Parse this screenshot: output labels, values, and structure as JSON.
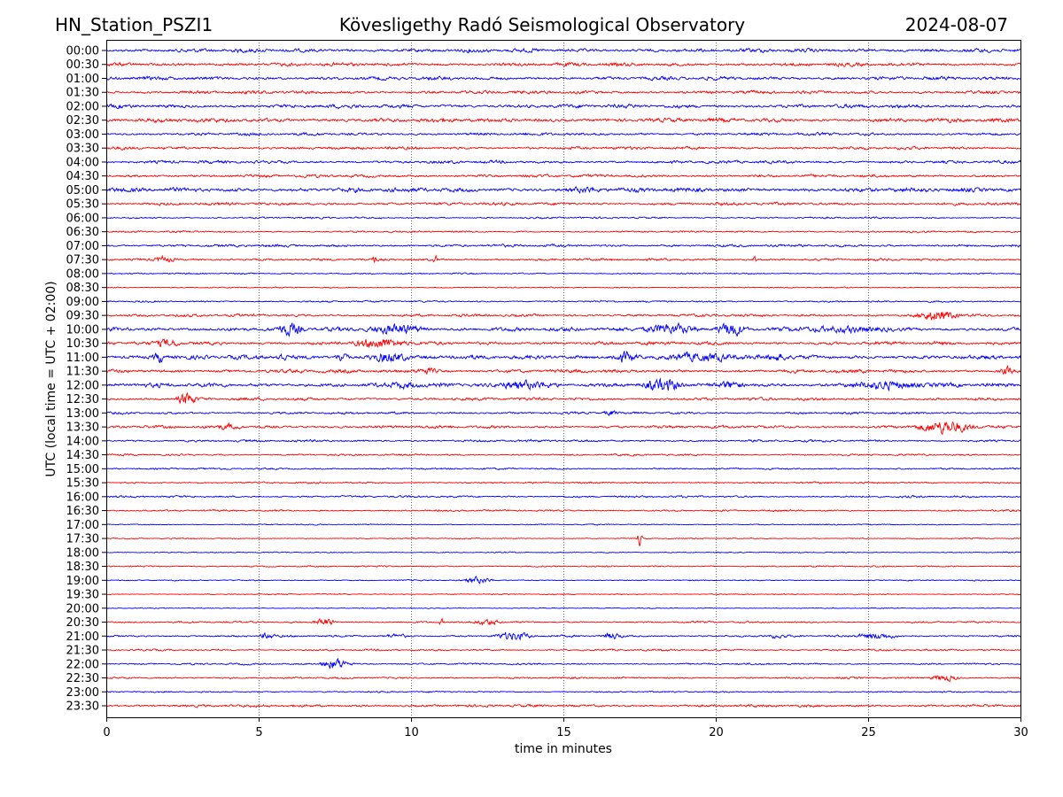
{
  "header": {
    "station": "HN_Station_PSZI1",
    "title": "Kövesligethy Radó Seismological Observatory",
    "date": "2024-08-07"
  },
  "chart_data": {
    "type": "line",
    "subtype": "helicorder",
    "xlabel": "time in minutes",
    "ylabel": "UTC (local time = UTC + 02:00)",
    "xlim": [
      0,
      30
    ],
    "xticks": [
      "0",
      "5",
      "10",
      "15",
      "20",
      "25",
      "30"
    ],
    "grid": "vertical dotted at every 5 minutes",
    "colors": [
      "#0000ff",
      "#ff0000"
    ],
    "rows": [
      "00:00",
      "00:30",
      "01:00",
      "01:30",
      "02:00",
      "02:30",
      "03:00",
      "03:30",
      "04:00",
      "04:30",
      "05:00",
      "05:30",
      "06:00",
      "06:30",
      "07:00",
      "07:30",
      "08:00",
      "08:30",
      "09:00",
      "09:30",
      "10:00",
      "10:30",
      "11:00",
      "11:30",
      "12:00",
      "12:30",
      "13:00",
      "13:30",
      "14:00",
      "14:30",
      "15:00",
      "15:30",
      "16:00",
      "16:30",
      "17:00",
      "17:30",
      "18:00",
      "18:30",
      "19:00",
      "19:30",
      "20:00",
      "20:30",
      "21:00",
      "21:30",
      "22:00",
      "22:30",
      "23:00",
      "23:30"
    ],
    "row_noise_level": [
      1.3,
      1.2,
      1.2,
      1.1,
      1.3,
      1.4,
      1.0,
      1.0,
      1.0,
      1.0,
      1.5,
      1.0,
      0.6,
      0.6,
      0.9,
      0.8,
      0.5,
      0.4,
      0.6,
      0.9,
      1.4,
      1.2,
      1.4,
      1.2,
      1.4,
      1.0,
      0.8,
      1.0,
      0.8,
      0.6,
      0.6,
      0.6,
      0.7,
      0.6,
      0.4,
      0.4,
      0.4,
      0.5,
      0.4,
      0.4,
      0.3,
      0.6,
      0.7,
      0.6,
      0.6,
      0.6,
      0.5,
      0.9
    ],
    "events": [
      {
        "row": "05:00",
        "start": 15.0,
        "end": 16.5,
        "amp": 3
      },
      {
        "row": "07:30",
        "start": 1.5,
        "end": 2.3,
        "amp": 3
      },
      {
        "row": "07:30",
        "start": 8.75,
        "end": 8.85,
        "amp": 5
      },
      {
        "row": "07:30",
        "start": 10.75,
        "end": 10.85,
        "amp": 4
      },
      {
        "row": "07:30",
        "start": 21.25,
        "end": 21.35,
        "amp": 4
      },
      {
        "row": "09:30",
        "start": 26.5,
        "end": 28.0,
        "amp": 5
      },
      {
        "row": "10:00",
        "start": 5.5,
        "end": 6.5,
        "amp": 6
      },
      {
        "row": "10:00",
        "start": 8.5,
        "end": 10.5,
        "amp": 5
      },
      {
        "row": "10:00",
        "start": 17.5,
        "end": 19.5,
        "amp": 5
      },
      {
        "row": "10:00",
        "start": 20.0,
        "end": 21.0,
        "amp": 7
      },
      {
        "row": "10:00",
        "start": 22.0,
        "end": 26.5,
        "amp": 3
      },
      {
        "row": "10:30",
        "start": 1.5,
        "end": 2.5,
        "amp": 4
      },
      {
        "row": "10:30",
        "start": 8.0,
        "end": 10.0,
        "amp": 5
      },
      {
        "row": "11:00",
        "start": 1.5,
        "end": 2.0,
        "amp": 5
      },
      {
        "row": "11:00",
        "start": 5.5,
        "end": 6.0,
        "amp": 4
      },
      {
        "row": "11:00",
        "start": 7.5,
        "end": 8.0,
        "amp": 5
      },
      {
        "row": "11:00",
        "start": 8.5,
        "end": 10.0,
        "amp": 5
      },
      {
        "row": "11:00",
        "start": 16.5,
        "end": 17.5,
        "amp": 5
      },
      {
        "row": "11:00",
        "start": 18.0,
        "end": 21.0,
        "amp": 4
      },
      {
        "row": "11:00",
        "start": 21.5,
        "end": 22.5,
        "amp": 4
      },
      {
        "row": "11:30",
        "start": 10.0,
        "end": 11.0,
        "amp": 3
      },
      {
        "row": "11:30",
        "start": 29.3,
        "end": 29.8,
        "amp": 4
      },
      {
        "row": "12:00",
        "start": 9.0,
        "end": 10.5,
        "amp": 3
      },
      {
        "row": "12:00",
        "start": 12.5,
        "end": 15.0,
        "amp": 4
      },
      {
        "row": "12:00",
        "start": 17.5,
        "end": 19.0,
        "amp": 6
      },
      {
        "row": "12:00",
        "start": 20.0,
        "end": 21.0,
        "amp": 4
      },
      {
        "row": "12:00",
        "start": 24.0,
        "end": 27.0,
        "amp": 4
      },
      {
        "row": "12:30",
        "start": 2.3,
        "end": 3.0,
        "amp": 6
      },
      {
        "row": "13:00",
        "start": 16.3,
        "end": 16.8,
        "amp": 3
      },
      {
        "row": "13:30",
        "start": 3.5,
        "end": 4.5,
        "amp": 3
      },
      {
        "row": "13:30",
        "start": 26.5,
        "end": 28.5,
        "amp": 6
      },
      {
        "row": "17:30",
        "start": 17.45,
        "end": 17.55,
        "amp": 8
      },
      {
        "row": "19:00",
        "start": 11.7,
        "end": 12.7,
        "amp": 3
      },
      {
        "row": "20:30",
        "start": 6.8,
        "end": 7.5,
        "amp": 4
      },
      {
        "row": "20:30",
        "start": 10.9,
        "end": 11.1,
        "amp": 3
      },
      {
        "row": "20:30",
        "start": 12.0,
        "end": 13.0,
        "amp": 3
      },
      {
        "row": "21:00",
        "start": 5.0,
        "end": 5.6,
        "amp": 3
      },
      {
        "row": "21:00",
        "start": 9.0,
        "end": 10.0,
        "amp": 2
      },
      {
        "row": "21:00",
        "start": 12.7,
        "end": 14.0,
        "amp": 4
      },
      {
        "row": "21:00",
        "start": 16.2,
        "end": 17.0,
        "amp": 3
      },
      {
        "row": "21:00",
        "start": 21.5,
        "end": 22.5,
        "amp": 2
      },
      {
        "row": "21:00",
        "start": 24.5,
        "end": 26.0,
        "amp": 3
      },
      {
        "row": "22:00",
        "start": 7.0,
        "end": 8.0,
        "amp": 5
      },
      {
        "row": "22:30",
        "start": 27.0,
        "end": 28.0,
        "amp": 3
      }
    ]
  }
}
